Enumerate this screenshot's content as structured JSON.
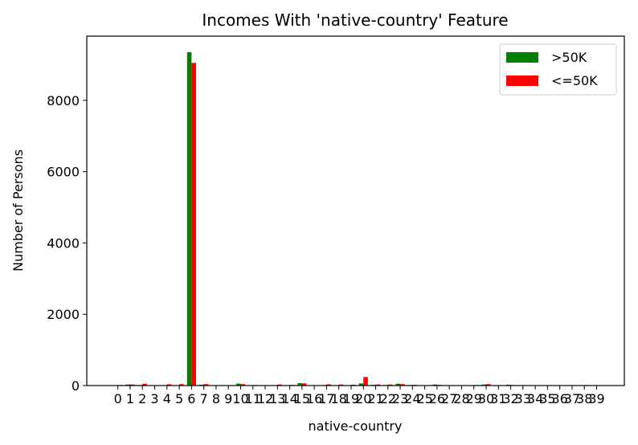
{
  "chart_data": {
    "type": "bar",
    "title": "Incomes With 'native-country' Feature",
    "xlabel": "native-country",
    "ylabel": "Number of Persons",
    "categories": [
      "0",
      "1",
      "2",
      "3",
      "4",
      "5",
      "6",
      "7",
      "8",
      "9",
      "10",
      "11",
      "12",
      "13",
      "14",
      "15",
      "16",
      "17",
      "18",
      "19",
      "20",
      "21",
      "22",
      "23",
      "24",
      "25",
      "26",
      "27",
      "28",
      "29",
      "30",
      "31",
      "32",
      "33",
      "34",
      "35",
      "36",
      "37",
      "38",
      "39"
    ],
    "ylim": [
      0,
      9800
    ],
    "yticks": [
      0,
      2000,
      4000,
      6000,
      8000
    ],
    "legend_position": "top-right",
    "series": [
      {
        "name": ">50K",
        "color": "#008000",
        "values": [
          5,
          30,
          15,
          3,
          10,
          12,
          9350,
          25,
          4,
          3,
          55,
          10,
          5,
          10,
          5,
          70,
          5,
          15,
          10,
          10,
          60,
          20,
          15,
          50,
          15,
          5,
          30,
          5,
          5,
          8,
          30,
          5,
          25,
          5,
          5,
          5,
          5,
          5,
          10,
          5
        ]
      },
      {
        "name": "<=50K",
        "color": "#ff0000",
        "values": [
          15,
          30,
          50,
          10,
          35,
          40,
          9050,
          40,
          10,
          8,
          40,
          15,
          10,
          30,
          20,
          60,
          10,
          35,
          30,
          25,
          240,
          30,
          30,
          40,
          20,
          10,
          20,
          10,
          10,
          15,
          40,
          10,
          15,
          10,
          8,
          10,
          8,
          10,
          15,
          8
        ]
      }
    ]
  }
}
